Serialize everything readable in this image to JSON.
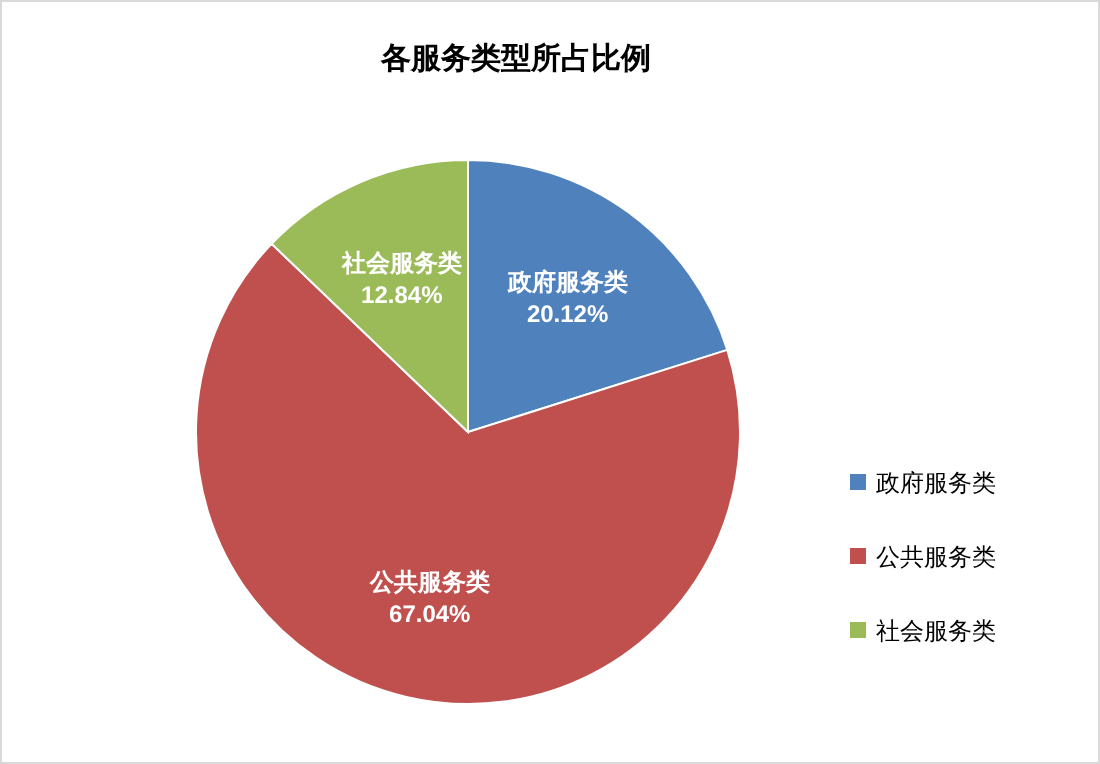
{
  "chart_data": {
    "type": "pie",
    "title": "各服务类型所占比例",
    "categories": [
      "政府服务类",
      "公共服务类",
      "社会服务类"
    ],
    "values": [
      20.12,
      67.04,
      12.84
    ],
    "colors": [
      "#4f81bd",
      "#c0504d",
      "#9bbb59"
    ],
    "value_labels": [
      "20.12%",
      "67.04%",
      "12.84%"
    ],
    "legend": "right"
  }
}
